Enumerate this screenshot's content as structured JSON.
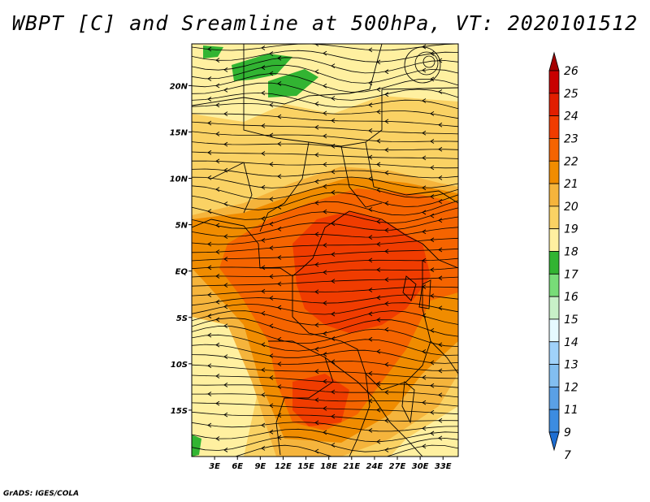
{
  "title": "WBPT [C] and Sreamline at 500hPa, VT: 2020101512",
  "footer": "GrADS: IGES/COLA",
  "map": {
    "lon_range": [
      0,
      35
    ],
    "lat_range": [
      -20,
      24.5
    ],
    "lat_ticks": [
      {
        "value": 20,
        "label": "20N"
      },
      {
        "value": 15,
        "label": "15N"
      },
      {
        "value": 10,
        "label": "10N"
      },
      {
        "value": 5,
        "label": "5N"
      },
      {
        "value": 0,
        "label": "EQ"
      },
      {
        "value": -5,
        "label": "5S"
      },
      {
        "value": -10,
        "label": "10S"
      },
      {
        "value": -15,
        "label": "15S"
      }
    ],
    "lon_ticks": [
      {
        "value": 3,
        "label": "3E"
      },
      {
        "value": 6,
        "label": "6E"
      },
      {
        "value": 9,
        "label": "9E"
      },
      {
        "value": 12,
        "label": "12E"
      },
      {
        "value": 15,
        "label": "15E"
      },
      {
        "value": 18,
        "label": "18E"
      },
      {
        "value": 21,
        "label": "21E"
      },
      {
        "value": 24,
        "label": "24E"
      },
      {
        "value": 27,
        "label": "27E"
      },
      {
        "value": 30,
        "label": "30E"
      },
      {
        "value": 33,
        "label": "33E"
      }
    ]
  },
  "colorbar": {
    "levels": [
      {
        "label": "26",
        "color": "#a50000"
      },
      {
        "label": "25",
        "color": "#c80000"
      },
      {
        "label": "24",
        "color": "#e11e00"
      },
      {
        "label": "23",
        "color": "#f03c00"
      },
      {
        "label": "22",
        "color": "#f56400"
      },
      {
        "label": "21",
        "color": "#f08c00"
      },
      {
        "label": "20",
        "color": "#f5b43c"
      },
      {
        "label": "19",
        "color": "#fad264"
      },
      {
        "label": "18",
        "color": "#fff0a0"
      },
      {
        "label": "17",
        "color": "#32b432"
      },
      {
        "label": "16",
        "color": "#78dc78"
      },
      {
        "label": "15",
        "color": "#c8f0c8"
      },
      {
        "label": "14",
        "color": "#e6faff"
      },
      {
        "label": "13",
        "color": "#a0d2fa"
      },
      {
        "label": "12",
        "color": "#82bef0"
      },
      {
        "label": "11",
        "color": "#5aa0e6"
      },
      {
        "label": "9",
        "color": "#3c8ce1"
      },
      {
        "label": "7",
        "color": "#1e6ed2"
      }
    ]
  },
  "colors": {
    "bg": "#fad264",
    "warm1": "#f5b43c",
    "warm2": "#f08c00",
    "warm3": "#f56400",
    "hot": "#f03c00",
    "green": "#32b432",
    "pale": "#fff0a0"
  }
}
